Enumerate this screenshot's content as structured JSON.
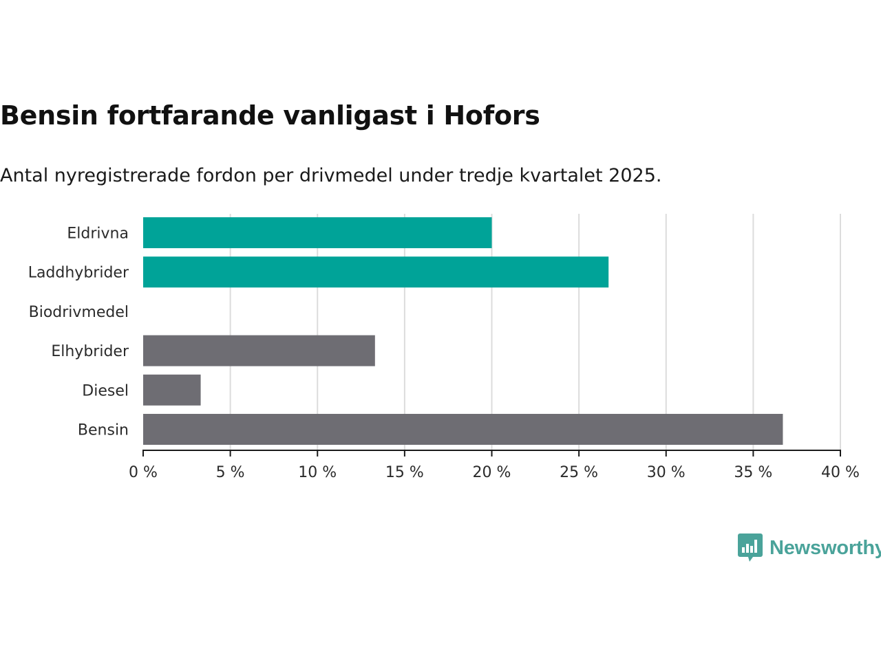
{
  "title": "Bensin fortfarande vanligast i Hofors",
  "subtitle": "Antal nyregistrerade fordon per drivmedel under tredje kvartalet 2025.",
  "brand": {
    "name": "Newsworthy",
    "color": "#4aa39a",
    "icon": "bar-chart-speech-bubble-icon"
  },
  "chart_data": {
    "type": "bar",
    "orientation": "horizontal",
    "categories": [
      "Eldrivna",
      "Laddhybrider",
      "Biodrivmedel",
      "Elhybrider",
      "Diesel",
      "Bensin"
    ],
    "values": [
      20.0,
      26.7,
      0.0,
      13.3,
      3.3,
      36.7
    ],
    "bar_colors": [
      "#00a398",
      "#00a398",
      "#6e6d73",
      "#6e6d73",
      "#6e6d73",
      "#6e6d73"
    ],
    "xlim": [
      0,
      40
    ],
    "x_ticks": [
      0,
      5,
      10,
      15,
      20,
      25,
      30,
      35,
      40
    ],
    "x_tick_labels": [
      "0 %",
      "5 %",
      "10 %",
      "15 %",
      "20 %",
      "25 %",
      "30 %",
      "35 %",
      "40 %"
    ],
    "xlabel": "",
    "ylabel": "",
    "grid": "vertical",
    "legend": "none"
  }
}
